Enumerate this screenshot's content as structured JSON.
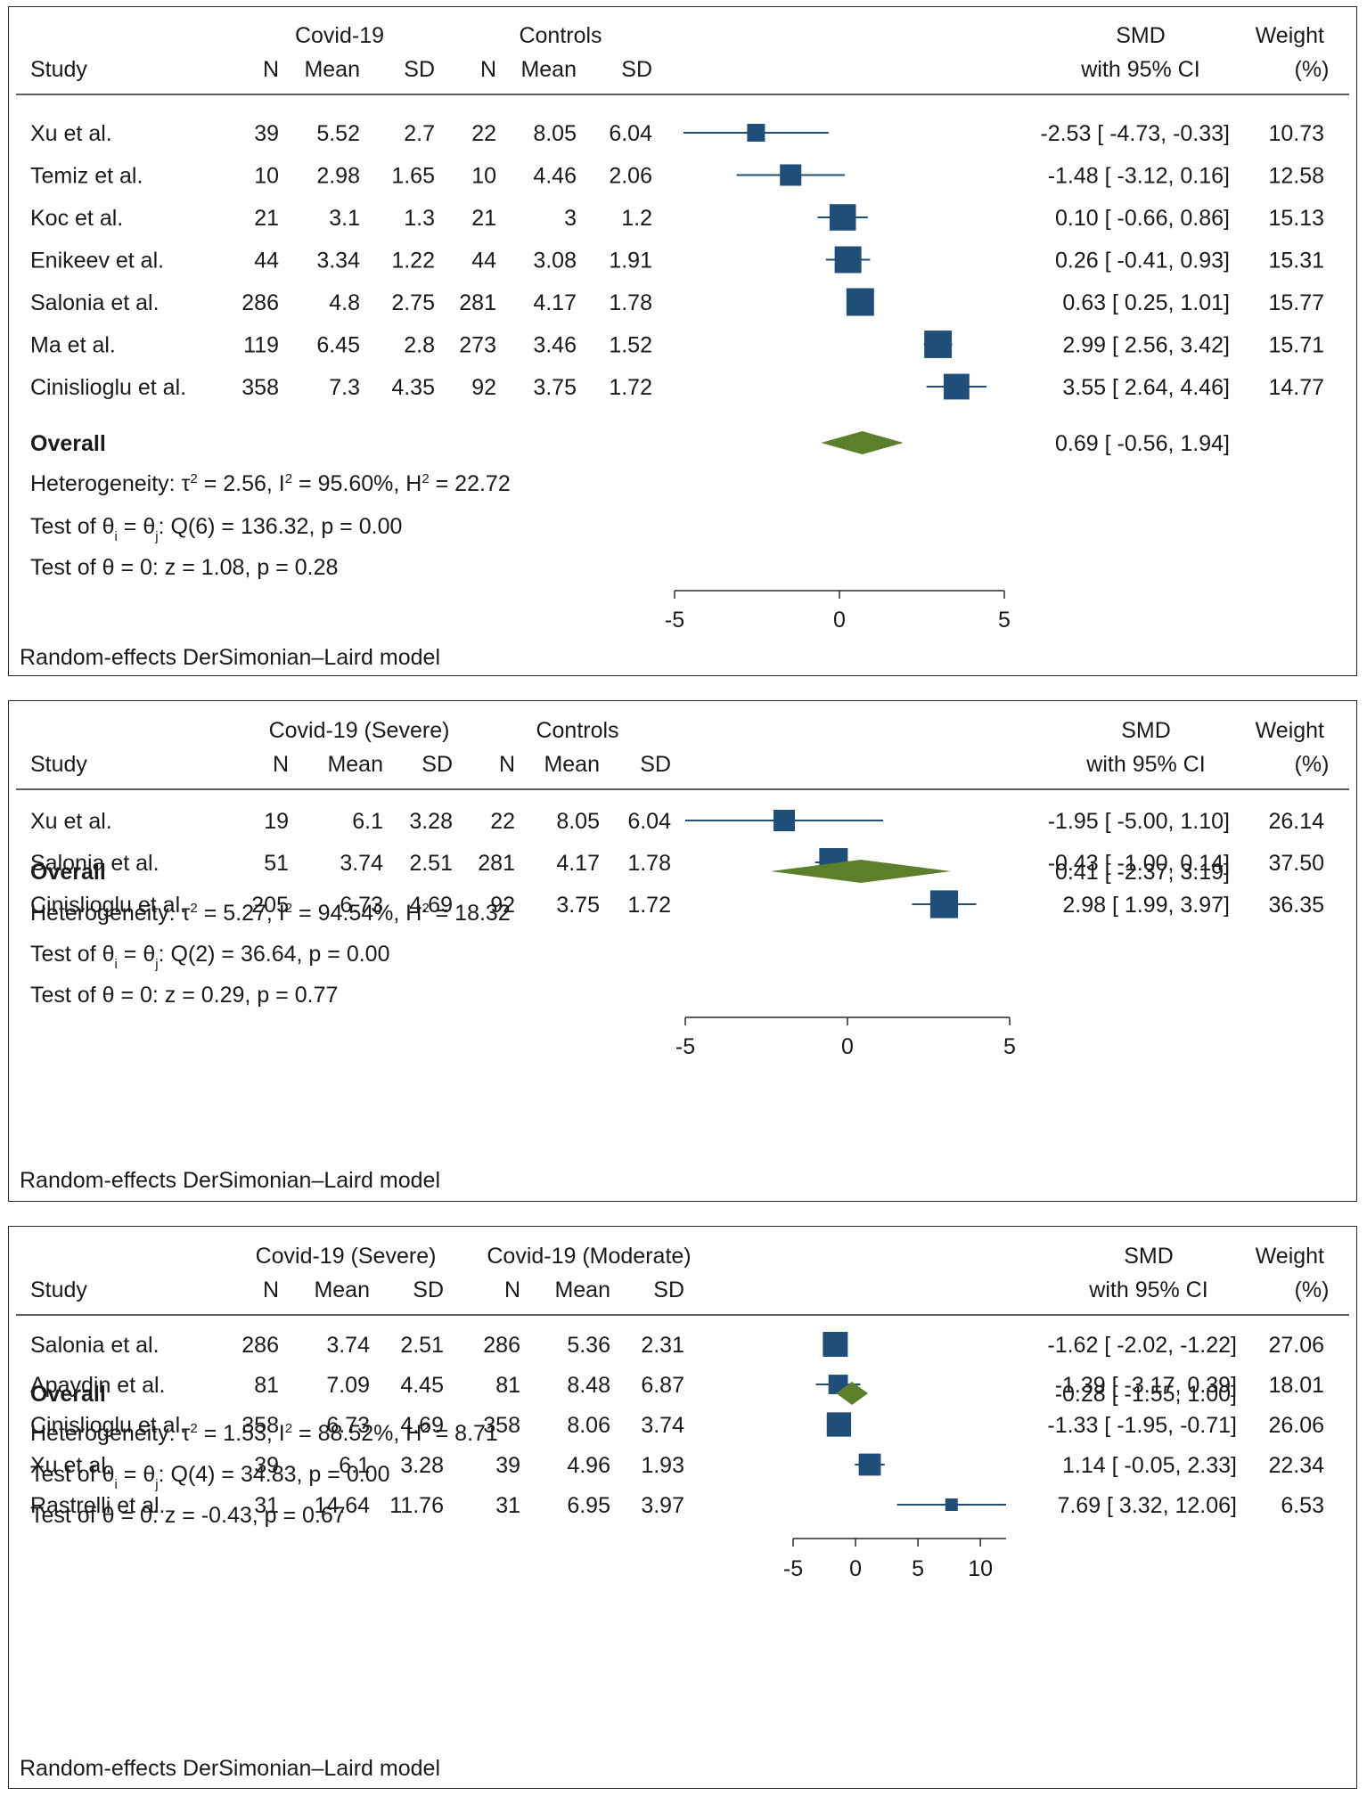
{
  "chart_data": [
    {
      "type": "forest",
      "group1_label": "Covid-19",
      "group2_label": "Controls",
      "columns": {
        "study": "Study",
        "n": "N",
        "mean": "Mean",
        "sd": "SD",
        "smd": "SMD",
        "ci": "with 95% CI",
        "weight": "Weight",
        "weight_unit": "(%)"
      },
      "studies": [
        {
          "name": "Xu et al.",
          "n1": "39",
          "mean1": "5.52",
          "sd1": "2.7",
          "n2": "22",
          "mean2": "8.05",
          "sd2": "6.04",
          "ci_text": "-2.53 [ -4.73,  -0.33]",
          "weight": "10.73",
          "smd": -2.53,
          "lo": -4.73,
          "hi": -0.33,
          "w": 10.73
        },
        {
          "name": "Temiz et al.",
          "n1": "10",
          "mean1": "2.98",
          "sd1": "1.65",
          "n2": "10",
          "mean2": "4.46",
          "sd2": "2.06",
          "ci_text": "-1.48 [ -3.12,   0.16]",
          "weight": "12.58",
          "smd": -1.48,
          "lo": -3.12,
          "hi": 0.16,
          "w": 12.58
        },
        {
          "name": "Koc et al.",
          "n1": "21",
          "mean1": "3.1",
          "sd1": "1.3",
          "n2": "21",
          "mean2": "3",
          "sd2": "1.2",
          "ci_text": "0.10 [ -0.66,   0.86]",
          "weight": "15.13",
          "smd": 0.1,
          "lo": -0.66,
          "hi": 0.86,
          "w": 15.13
        },
        {
          "name": "Enikeev et al.",
          "n1": "44",
          "mean1": "3.34",
          "sd1": "1.22",
          "n2": "44",
          "mean2": "3.08",
          "sd2": "1.91",
          "ci_text": "0.26 [ -0.41,   0.93]",
          "weight": "15.31",
          "smd": 0.26,
          "lo": -0.41,
          "hi": 0.93,
          "w": 15.31
        },
        {
          "name": "Salonia et al.",
          "n1": "286",
          "mean1": "4.8",
          "sd1": "2.75",
          "n2": "281",
          "mean2": "4.17",
          "sd2": "1.78",
          "ci_text": "0.63 [  0.25,   1.01]",
          "weight": "15.77",
          "smd": 0.63,
          "lo": 0.25,
          "hi": 1.01,
          "w": 15.77
        },
        {
          "name": "Ma et al.",
          "n1": "119",
          "mean1": "6.45",
          "sd1": "2.8",
          "n2": "273",
          "mean2": "3.46",
          "sd2": "1.52",
          "ci_text": "2.99 [  2.56,   3.42]",
          "weight": "15.71",
          "smd": 2.99,
          "lo": 2.56,
          "hi": 3.42,
          "w": 15.71
        },
        {
          "name": "Cinislioglu et al.",
          "n1": "358",
          "mean1": "7.3",
          "sd1": "4.35",
          "n2": "92",
          "mean2": "3.75",
          "sd2": "1.72",
          "ci_text": "3.55 [  2.64,   4.46]",
          "weight": "14.77",
          "smd": 3.55,
          "lo": 2.64,
          "hi": 4.46,
          "w": 14.77
        }
      ],
      "overall": {
        "label": "Overall",
        "ci_text": "0.69 [ -0.56,   1.94]",
        "smd": 0.69,
        "lo": -0.56,
        "hi": 1.94
      },
      "heterogeneity": {
        "prefix": "Heterogeneity: τ",
        "tau2": " = 2.56, I",
        "i2": " = 95.60%, H",
        "h2": " = 22.72",
        "sup": "2"
      },
      "test_q": {
        "prefix": "Test of θ",
        "sub_i": "i",
        "mid": " = θ",
        "sub_j": "j",
        "suffix": ": Q(6) = 136.32, p = 0.00"
      },
      "test_z": "Test of θ = 0: z = 1.08, p = 0.28",
      "x_ticks": [
        {
          "v": -5,
          "label": "-5"
        },
        {
          "v": 0,
          "label": "0"
        },
        {
          "v": 5,
          "label": "5"
        }
      ],
      "xlim": [
        -5,
        5
      ],
      "footer": "Random-effects DerSimonian–Laird model"
    },
    {
      "type": "forest",
      "group1_label": "Covid-19 (Severe)",
      "group2_label": "Controls",
      "columns": {
        "study": "Study",
        "n": "N",
        "mean": "Mean",
        "sd": "SD",
        "smd": "SMD",
        "ci": "with 95% CI",
        "weight": "Weight",
        "weight_unit": "(%)"
      },
      "studies": [
        {
          "name": "Xu et al.",
          "n1": "19",
          "mean1": "6.1",
          "sd1": "3.28",
          "n2": "22",
          "mean2": "8.05",
          "sd2": "6.04",
          "ci_text": "-1.95 [ -5.00,   1.10]",
          "weight": "26.14",
          "smd": -1.95,
          "lo": -5.0,
          "hi": 1.1,
          "w": 26.14
        },
        {
          "name": "Salonia et al.",
          "n1": "51",
          "mean1": "3.74",
          "sd1": "2.51",
          "n2": "281",
          "mean2": "4.17",
          "sd2": "1.78",
          "ci_text": "-0.43 [ -1.00,   0.14]",
          "weight": "37.50",
          "smd": -0.43,
          "lo": -1.0,
          "hi": 0.14,
          "w": 37.5
        },
        {
          "name": "Cinislioglu et al.",
          "n1": "205",
          "mean1": "6.73",
          "sd1": "4.69",
          "n2": "92",
          "mean2": "3.75",
          "sd2": "1.72",
          "ci_text": "2.98 [  1.99,   3.97]",
          "weight": "36.35",
          "smd": 2.98,
          "lo": 1.99,
          "hi": 3.97,
          "w": 36.35
        }
      ],
      "overall": {
        "label": "Overall",
        "ci_text": "0.41 [ -2.37,   3.19]",
        "smd": 0.41,
        "lo": -2.37,
        "hi": 3.19
      },
      "heterogeneity": {
        "prefix": "Heterogeneity: τ",
        "tau2": " = 5.27, I",
        "i2": " = 94.54%, H",
        "h2": " = 18.32",
        "sup": "2"
      },
      "test_q": {
        "prefix": "Test of θ",
        "sub_i": "i",
        "mid": " = θ",
        "sub_j": "j",
        "suffix": ": Q(2) = 36.64, p = 0.00"
      },
      "test_z": "Test of θ = 0: z = 0.29, p = 0.77",
      "x_ticks": [
        {
          "v": -5,
          "label": "-5"
        },
        {
          "v": 0,
          "label": "0"
        },
        {
          "v": 5,
          "label": "5"
        }
      ],
      "xlim": [
        -5,
        5
      ],
      "footer": "Random-effects DerSimonian–Laird model"
    },
    {
      "type": "forest",
      "group1_label": "Covid-19 (Severe)",
      "group2_label": "Covid-19 (Moderate)",
      "columns": {
        "study": "Study",
        "n": "N",
        "mean": "Mean",
        "sd": "SD",
        "smd": "SMD",
        "ci": "with 95% CI",
        "weight": "Weight",
        "weight_unit": "(%)"
      },
      "studies": [
        {
          "name": "Salonia et al.",
          "n1": "286",
          "mean1": "3.74",
          "sd1": "2.51",
          "n2": "286",
          "mean2": "5.36",
          "sd2": "2.31",
          "ci_text": "-1.62 [ -2.02,  -1.22]",
          "weight": "27.06",
          "smd": -1.62,
          "lo": -2.02,
          "hi": -1.22,
          "w": 27.06
        },
        {
          "name": "Apaydin et al.",
          "n1": "81",
          "mean1": "7.09",
          "sd1": "4.45",
          "n2": "81",
          "mean2": "8.48",
          "sd2": "6.87",
          "ci_text": "-1.39 [ -3.17,   0.39]",
          "weight": "18.01",
          "smd": -1.39,
          "lo": -3.17,
          "hi": 0.39,
          "w": 18.01
        },
        {
          "name": "Cinislioglu et al.",
          "n1": "358",
          "mean1": "6.73",
          "sd1": "4.69",
          "n2": "358",
          "mean2": "8.06",
          "sd2": "3.74",
          "ci_text": "-1.33 [ -1.95,  -0.71]",
          "weight": "26.06",
          "smd": -1.33,
          "lo": -1.95,
          "hi": -0.71,
          "w": 26.06
        },
        {
          "name": "Xu et al.",
          "n1": "39",
          "mean1": "6.1",
          "sd1": "3.28",
          "n2": "39",
          "mean2": "4.96",
          "sd2": "1.93",
          "ci_text": "1.14 [ -0.05,   2.33]",
          "weight": "22.34",
          "smd": 1.14,
          "lo": -0.05,
          "hi": 2.33,
          "w": 22.34
        },
        {
          "name": "Rastrelli et al.",
          "n1": "31",
          "mean1": "14.64",
          "sd1": "11.76",
          "n2": "31",
          "mean2": "6.95",
          "sd2": "3.97",
          "ci_text": "7.69 [  3.32,  12.06]",
          "weight": "6.53",
          "smd": 7.69,
          "lo": 3.32,
          "hi": 12.06,
          "w": 6.53
        }
      ],
      "overall": {
        "label": "Overall",
        "ci_text": "-0.28 [ -1.55,   1.00]",
        "smd": -0.28,
        "lo": -1.55,
        "hi": 1.0
      },
      "heterogeneity": {
        "prefix": "Heterogeneity: τ",
        "tau2": " = 1.53, I",
        "i2": " = 88.52%, H",
        "h2": " = 8.71",
        "sup": "2"
      },
      "test_q": {
        "prefix": "Test of θ",
        "sub_i": "i",
        "mid": " = θ",
        "sub_j": "j",
        "suffix": ": Q(4) = 34.83, p = 0.00"
      },
      "test_z": "Test of θ = 0: z = -0.43, p = 0.67",
      "x_ticks": [
        {
          "v": -5,
          "label": "-5"
        },
        {
          "v": 0,
          "label": "0"
        },
        {
          "v": 5,
          "label": "5"
        },
        {
          "v": 10,
          "label": "10"
        }
      ],
      "xlim": [
        -5,
        12.06
      ],
      "footer": "Random-effects DerSimonian–Laird model"
    }
  ],
  "colors": {
    "marker": "#1f4e79",
    "diamond": "#5b7f2b",
    "rule": "#2a2a2a",
    "text": "#1a1a1a"
  }
}
